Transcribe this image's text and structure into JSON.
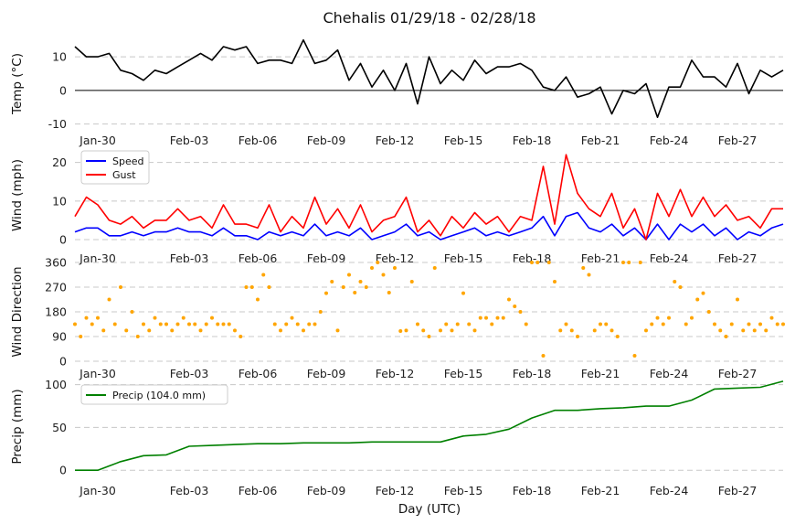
{
  "chart_data": [
    {
      "type": "line",
      "title": "Chehalis 01/29/18 - 02/28/18",
      "xlabel": "Day (UTC)",
      "x_unit": "days since Jan-29 00:00 UTC",
      "x_range": [
        0,
        31
      ],
      "x_step": 0.5,
      "xticks": [
        {
          "value": 1,
          "label": "Jan-30"
        },
        {
          "value": 5,
          "label": "Feb-03"
        },
        {
          "value": 8,
          "label": "Feb-06"
        },
        {
          "value": 11,
          "label": "Feb-09"
        },
        {
          "value": 14,
          "label": "Feb-12"
        },
        {
          "value": 17,
          "label": "Feb-15"
        },
        {
          "value": 20,
          "label": "Feb-18"
        },
        {
          "value": 23,
          "label": "Feb-21"
        },
        {
          "value": 26,
          "label": "Feb-24"
        },
        {
          "value": 29,
          "label": "Feb-27"
        }
      ],
      "ylabel": "Temp (°C)",
      "ylim": [
        -12,
        16
      ],
      "yticks": [
        -10,
        0,
        10
      ],
      "grid": true,
      "series": [
        {
          "name": "Temp",
          "color": "#000000",
          "values": [
            13,
            10,
            10,
            11,
            6,
            5,
            3,
            6,
            5,
            7,
            9,
            11,
            9,
            13,
            12,
            13,
            8,
            9,
            9,
            8,
            15,
            8,
            9,
            12,
            3,
            8,
            1,
            6,
            0,
            8,
            -4,
            10,
            2,
            6,
            3,
            9,
            5,
            7,
            7,
            8,
            6,
            1,
            0,
            4,
            -2,
            -1,
            1,
            -7,
            0,
            -1,
            2,
            -8,
            1,
            1,
            9,
            4,
            4,
            1,
            8,
            -1,
            6,
            4,
            6
          ]
        }
      ]
    },
    {
      "type": "line",
      "ylabel": "Wind (mph)",
      "x_range": [
        0,
        31
      ],
      "x_step": 0.5,
      "ylim": [
        0,
        23
      ],
      "yticks": [
        0,
        10,
        20
      ],
      "grid": true,
      "legend": "top-left",
      "series": [
        {
          "name": "Speed",
          "color": "#0000ff",
          "values": [
            2,
            3,
            3,
            1,
            1,
            2,
            1,
            2,
            2,
            3,
            2,
            2,
            1,
            3,
            1,
            1,
            0,
            2,
            1,
            2,
            1,
            4,
            1,
            2,
            1,
            3,
            0,
            1,
            2,
            4,
            1,
            2,
            0,
            1,
            2,
            3,
            1,
            2,
            1,
            2,
            3,
            6,
            1,
            6,
            7,
            3,
            2,
            4,
            1,
            3,
            0,
            4,
            0,
            4,
            2,
            4,
            1,
            3,
            0,
            2,
            1,
            3,
            4
          ]
        },
        {
          "name": "Gust",
          "color": "#ff0000",
          "values": [
            6,
            11,
            9,
            5,
            4,
            6,
            3,
            5,
            5,
            8,
            5,
            6,
            3,
            9,
            4,
            4,
            3,
            9,
            2,
            6,
            3,
            11,
            4,
            8,
            3,
            9,
            2,
            5,
            6,
            11,
            2,
            5,
            1,
            6,
            3,
            7,
            4,
            6,
            2,
            6,
            5,
            19,
            4,
            22,
            12,
            8,
            6,
            12,
            3,
            8,
            0,
            12,
            6,
            13,
            6,
            11,
            6,
            9,
            5,
            6,
            3,
            8,
            8
          ]
        }
      ]
    },
    {
      "type": "scatter",
      "ylabel": "Wind Direction",
      "x_range": [
        0,
        31
      ],
      "x_step": 0.25,
      "ylim": [
        0,
        360
      ],
      "yticks": [
        0,
        90,
        180,
        270,
        360
      ],
      "grid": true,
      "series": [
        {
          "name": "Direction",
          "color": "#ffa500",
          "values": [
            135,
            90,
            158,
            135,
            158,
            112,
            225,
            135,
            270,
            112,
            180,
            90,
            135,
            112,
            158,
            135,
            135,
            112,
            135,
            158,
            135,
            135,
            112,
            135,
            158,
            135,
            135,
            135,
            112,
            90,
            270,
            270,
            225,
            315,
            270,
            135,
            112,
            135,
            158,
            135,
            112,
            135,
            135,
            180,
            248,
            290,
            112,
            270,
            315,
            250,
            290,
            270,
            340,
            360,
            315,
            250,
            340,
            110,
            112,
            290,
            135,
            112,
            90,
            340,
            112,
            135,
            112,
            135,
            248,
            135,
            112,
            158,
            158,
            135,
            158,
            158,
            225,
            200,
            180,
            135,
            360,
            360,
            20,
            360,
            290,
            112,
            135,
            112,
            90,
            340,
            315,
            112,
            135,
            135,
            112,
            90,
            360,
            360,
            20,
            360,
            112,
            135,
            158,
            135,
            158,
            290,
            270,
            135,
            158,
            225,
            248,
            180,
            135,
            112,
            90,
            135,
            225,
            112,
            135,
            112,
            135,
            112,
            158,
            135,
            135
          ]
        }
      ]
    },
    {
      "type": "line",
      "ylabel": "Precip (mm)",
      "x_range": [
        0,
        31
      ],
      "x_step": 1,
      "ylim": [
        -3,
        105
      ],
      "yticks": [
        0,
        50,
        100
      ],
      "grid": true,
      "legend": "top-left",
      "series": [
        {
          "name": "Precip (104.0 mm)",
          "color": "#008000",
          "values": [
            0,
            0,
            10,
            17,
            18,
            28,
            29,
            30,
            31,
            31,
            32,
            32,
            32,
            33,
            33,
            33,
            33,
            40,
            42,
            48,
            61,
            70,
            70,
            72,
            73,
            75,
            75,
            82,
            95,
            96,
            97,
            104
          ]
        }
      ]
    }
  ]
}
